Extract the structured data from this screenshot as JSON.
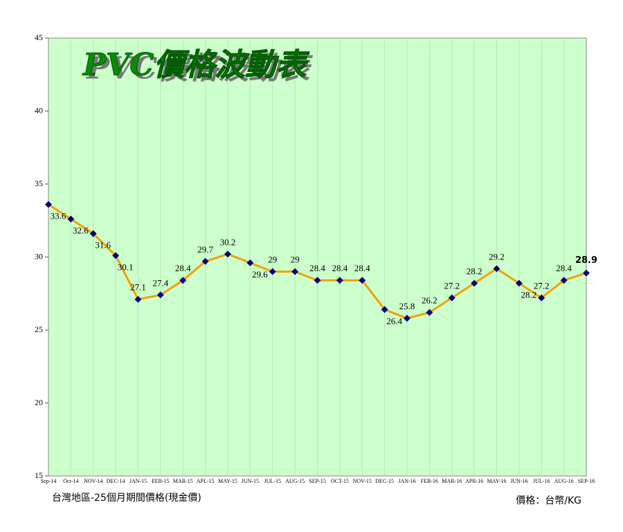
{
  "chart_data": {
    "type": "line",
    "title": "PVC價格波動表",
    "categories": [
      "Sep-14",
      "Oct-14",
      "NOV-14",
      "DEC-14",
      "JAN-15",
      "FEB-15",
      "MAR-15",
      "APL-15",
      "MAY-15",
      "JUN-15",
      "JUL-15",
      "AUG-15",
      "SEP-15",
      "OCT-15",
      "NOV-15",
      "DEC-15",
      "JAN-16",
      "FEB-16",
      "MAR-16",
      "APR-16",
      "MAY-16",
      "JUN-16",
      "JUL-16",
      "AUG-16",
      "SEP-16"
    ],
    "series": [
      {
        "name": "PVC",
        "color": "#f5a000",
        "marker_color": "#00007a",
        "values": [
          33.6,
          32.6,
          31.6,
          30.1,
          27.1,
          27.4,
          28.4,
          29.7,
          30.2,
          29.6,
          29,
          29,
          28.4,
          28.4,
          28.4,
          26.4,
          25.8,
          26.2,
          27.2,
          28.2,
          29.2,
          28.2,
          27.2,
          28.4,
          28.9
        ]
      }
    ],
    "ylim": [
      15,
      45
    ],
    "yticks": [
      15,
      20,
      25,
      30,
      35,
      40,
      45
    ],
    "grid": true,
    "footnote_left": "台灣地區-25個月期間價格(現金價)",
    "footnote_right": "價格：台幣/KG"
  }
}
